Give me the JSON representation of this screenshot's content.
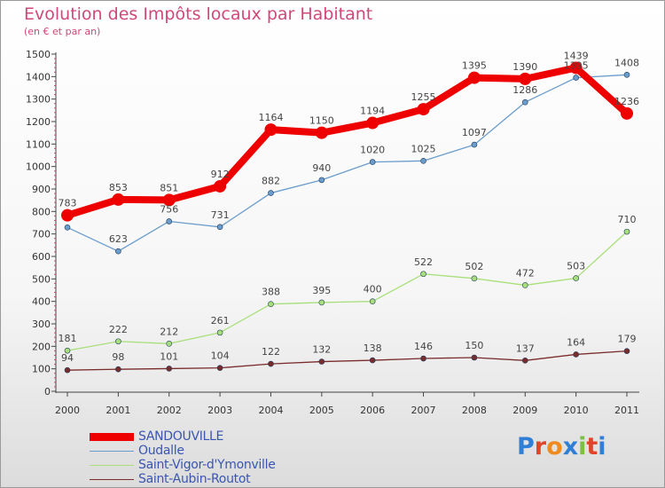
{
  "header": {
    "title": "Evolution des Impôts locaux par Habitant",
    "subtitle": "(en € et par an)"
  },
  "logo": {
    "text": "Proxiti",
    "letter_colors": [
      "#2f7fd6",
      "#e0452c",
      "#f08a1c",
      "#2f7fd6",
      "#7bc043",
      "#e0452c",
      "#2f7fd6"
    ]
  },
  "legend": [
    {
      "label": "SANDOUVILLE",
      "color": "#ee0000",
      "thick": true
    },
    {
      "label": "Oudalle",
      "color": "#6a9ccc",
      "thick": false
    },
    {
      "label": "Saint-Vigor-d'Ymonville",
      "color": "#a8df7a",
      "thick": false
    },
    {
      "label": "Saint-Aubin-Routot",
      "color": "#7a2c2c",
      "thick": false
    }
  ],
  "chart_data": {
    "type": "line",
    "title": "Evolution des Impôts locaux par Habitant",
    "subtitle": "(en € et par an)",
    "x": [
      "2000",
      "2001",
      "2002",
      "2003",
      "2004",
      "2005",
      "2006",
      "2007",
      "2008",
      "2009",
      "2010",
      "2011"
    ],
    "ylim": [
      0,
      1500
    ],
    "yticks": [
      0,
      100,
      200,
      300,
      400,
      500,
      600,
      700,
      800,
      900,
      1000,
      1100,
      1200,
      1300,
      1400,
      1500
    ],
    "grid": false,
    "series": [
      {
        "name": "SANDOUVILLE",
        "color": "#ee0000",
        "values": [
          783,
          853,
          851,
          912,
          1164,
          1150,
          1194,
          1255,
          1395,
          1390,
          1439,
          1236
        ]
      },
      {
        "name": "Oudalle",
        "color": "#6a9ccc",
        "values": [
          729,
          623,
          756,
          731,
          882,
          940,
          1020,
          1025,
          1097,
          1286,
          1395,
          1408
        ]
      },
      {
        "name": "Saint-Vigor-d'Ymonville",
        "color": "#a8df7a",
        "values": [
          181,
          222,
          212,
          261,
          388,
          395,
          400,
          522,
          502,
          472,
          503,
          710
        ]
      },
      {
        "name": "Saint-Aubin-Routot",
        "color": "#7a2c2c",
        "values": [
          94,
          98,
          101,
          104,
          122,
          132,
          138,
          146,
          150,
          137,
          164,
          179
        ]
      }
    ],
    "data_labels": [
      [
        "783",
        "853",
        "851",
        "912",
        "1164",
        "1150",
        "1194",
        "1255",
        "1395",
        "1390",
        "1439",
        "1236"
      ],
      [
        "",
        "623",
        "756",
        "731",
        "882",
        "940",
        "1020",
        "1025",
        "1097",
        "1286",
        "1395",
        "1408"
      ],
      [
        "181",
        "222",
        "212",
        "261",
        "388",
        "395",
        "400",
        "522",
        "502",
        "472",
        "503",
        "710"
      ],
      [
        "94",
        "98",
        "101",
        "104",
        "122",
        "132",
        "138",
        "146",
        "150",
        "137",
        "164",
        "179"
      ]
    ]
  }
}
